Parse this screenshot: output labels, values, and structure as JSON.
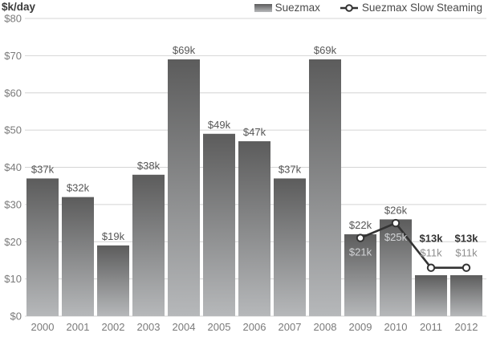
{
  "header": {
    "axis_title": "$k/day"
  },
  "legend": {
    "items": [
      {
        "label": "Suezmax",
        "type": "bar-swatch"
      },
      {
        "label": "Suezmax Slow Steaming",
        "type": "line-marker"
      }
    ]
  },
  "colors": {
    "bar_top": "#5c5c5c",
    "bar_bottom": "#b6b8ba",
    "grid": "#d4d4d4",
    "axis_text": "#7a7a7a",
    "bar_label": "#565656",
    "bar_label_muted": "#8e8e8e",
    "line": "#333333",
    "line_label_light": "#d2d4d6",
    "line_label_bold": "#333333",
    "marker_fill": "#ffffff"
  },
  "chart_data": {
    "type": "bar+line",
    "title": "",
    "ylabel": "$k/day",
    "xlabel": "",
    "ylim": [
      0,
      80
    ],
    "ytick_step": 10,
    "ytick_labels": [
      "$0",
      "$10",
      "$20",
      "$30",
      "$40",
      "$50",
      "$60",
      "$70",
      "$80"
    ],
    "grid": true,
    "legend_position": "top-right",
    "categories": [
      "2000",
      "2001",
      "2002",
      "2003",
      "2004",
      "2005",
      "2006",
      "2007",
      "2008",
      "2009",
      "2010",
      "2011",
      "2012"
    ],
    "series": [
      {
        "name": "Suezmax",
        "type": "bar",
        "values": [
          37,
          32,
          19,
          38,
          69,
          49,
          47,
          37,
          69,
          22,
          26,
          11,
          11
        ],
        "labels": [
          "$37k",
          "$32k",
          "$19k",
          "$38k",
          "$69k",
          "$49k",
          "$47k",
          "$37k",
          "$69k",
          "$22k",
          "$26k",
          "$11k",
          "$11k"
        ],
        "label_styles": [
          "dark",
          "dark",
          "dark",
          "dark",
          "dark",
          "dark",
          "dark",
          "dark",
          "dark",
          "dark",
          "dark",
          "muted",
          "muted"
        ]
      },
      {
        "name": "Suezmax Slow Steaming",
        "type": "line",
        "categories": [
          "2009",
          "2010",
          "2011",
          "2012"
        ],
        "values": [
          21,
          25,
          13,
          13
        ],
        "labels": [
          "$21k",
          "$25k",
          "$13k",
          "$13k"
        ],
        "label_positions": [
          "below-marker",
          "below-marker",
          "above-stack",
          "above-stack"
        ],
        "label_styles": [
          "light",
          "light",
          "bold",
          "bold"
        ]
      }
    ]
  }
}
